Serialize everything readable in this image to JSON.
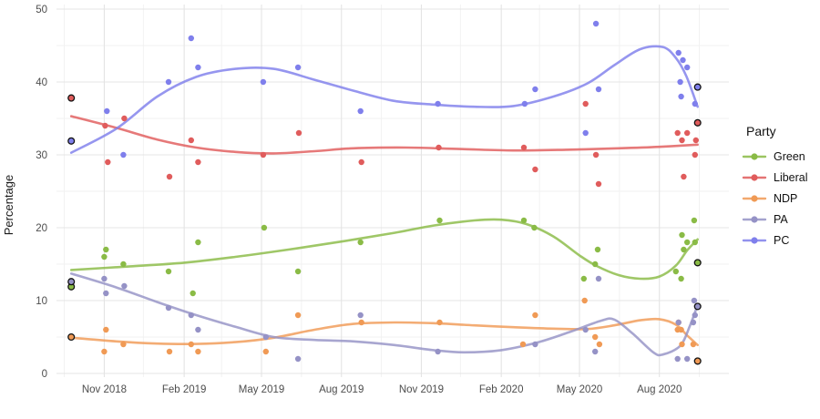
{
  "colors": {
    "background": "#ffffff",
    "grid_major": "#e4e4e4",
    "grid_minor": "#f1f1f1",
    "tick_text": "#4d4d4d",
    "text": "#1a1a1a",
    "election_outline": "#111111"
  },
  "chart_data": {
    "type": "scatter",
    "smoother": "loess",
    "title": "",
    "ylabel": "Percentage",
    "legend_title": "Party",
    "legend_position": "right",
    "grid": true,
    "ylim": [
      0,
      50
    ],
    "xlim": [
      "2018-09-07",
      "2020-10-20"
    ],
    "y_major_ticks": [
      0,
      10,
      20,
      30,
      40,
      50
    ],
    "y_minor_ticks": [
      5,
      15,
      25,
      35,
      45
    ],
    "x_major_ticks": [
      {
        "date": "2018-11-01",
        "label": "Nov 2018"
      },
      {
        "date": "2019-02-01",
        "label": "Feb 2019"
      },
      {
        "date": "2019-05-01",
        "label": "May 2019"
      },
      {
        "date": "2019-08-01",
        "label": "Aug 2019"
      },
      {
        "date": "2019-11-01",
        "label": "Nov 2019"
      },
      {
        "date": "2020-02-01",
        "label": "Feb 2020"
      },
      {
        "date": "2020-05-01",
        "label": "May 2020"
      },
      {
        "date": "2020-08-01",
        "label": "Aug 2020"
      }
    ],
    "x_minor_ticks": [
      "2018-09-16",
      "2018-12-16",
      "2019-03-16",
      "2019-06-16",
      "2019-09-16",
      "2019-12-16",
      "2020-03-16",
      "2020-06-16",
      "2020-09-16"
    ],
    "series": [
      {
        "name": "Green",
        "color": "#8abb46",
        "polls": [
          [
            "2018-11-01",
            16
          ],
          [
            "2018-11-03",
            17
          ],
          [
            "2018-11-23",
            15
          ],
          [
            "2019-01-14",
            14
          ],
          [
            "2019-02-11",
            11
          ],
          [
            "2019-02-17",
            18
          ],
          [
            "2019-05-04",
            20
          ],
          [
            "2019-06-12",
            14
          ],
          [
            "2019-08-23",
            18
          ],
          [
            "2019-11-22",
            21
          ],
          [
            "2020-02-27",
            21
          ],
          [
            "2020-03-10",
            20
          ],
          [
            "2020-05-06",
            13
          ],
          [
            "2020-05-19",
            15
          ],
          [
            "2020-05-22",
            17
          ],
          [
            "2020-08-20",
            14
          ],
          [
            "2020-08-26",
            13
          ],
          [
            "2020-08-27",
            19
          ],
          [
            "2020-08-29",
            17
          ],
          [
            "2020-09-02",
            18
          ],
          [
            "2020-09-10",
            21
          ],
          [
            "2020-09-11",
            18
          ]
        ],
        "elections": [
          [
            "2018-09-24",
            11.9
          ],
          [
            "2020-09-14",
            15.2
          ]
        ],
        "trend": [
          [
            "2018-09-24",
            14.2
          ],
          [
            "2018-12-01",
            14.7
          ],
          [
            "2019-02-01",
            15.2
          ],
          [
            "2019-04-01",
            16.0
          ],
          [
            "2019-06-01",
            17.0
          ],
          [
            "2019-08-01",
            18.1
          ],
          [
            "2019-10-01",
            19.3
          ],
          [
            "2019-11-15",
            20.3
          ],
          [
            "2020-01-01",
            21.0
          ],
          [
            "2020-02-01",
            21.1
          ],
          [
            "2020-03-01",
            20.5
          ],
          [
            "2020-04-01",
            18.8
          ],
          [
            "2020-05-01",
            16.2
          ],
          [
            "2020-05-20",
            14.8
          ],
          [
            "2020-06-15",
            13.5
          ],
          [
            "2020-07-10",
            13.0
          ],
          [
            "2020-08-01",
            13.3
          ],
          [
            "2020-08-20",
            14.8
          ],
          [
            "2020-09-02",
            16.9
          ],
          [
            "2020-09-14",
            18.4
          ]
        ]
      },
      {
        "name": "Liberal",
        "color": "#e05c5c",
        "polls": [
          [
            "2018-11-02",
            34
          ],
          [
            "2018-11-05",
            29
          ],
          [
            "2018-11-24",
            35
          ],
          [
            "2019-01-15",
            27
          ],
          [
            "2019-02-09",
            32
          ],
          [
            "2019-02-17",
            29
          ],
          [
            "2019-05-03",
            30
          ],
          [
            "2019-06-13",
            33
          ],
          [
            "2019-08-24",
            29
          ],
          [
            "2019-11-21",
            31
          ],
          [
            "2020-02-27",
            31
          ],
          [
            "2020-03-11",
            28
          ],
          [
            "2020-05-08",
            37
          ],
          [
            "2020-05-20",
            30
          ],
          [
            "2020-05-23",
            26
          ],
          [
            "2020-08-22",
            33
          ],
          [
            "2020-08-27",
            32
          ],
          [
            "2020-08-29",
            27
          ],
          [
            "2020-09-02",
            33
          ],
          [
            "2020-09-11",
            30
          ],
          [
            "2020-09-12",
            32
          ]
        ],
        "elections": [
          [
            "2018-09-24",
            37.8
          ],
          [
            "2020-09-14",
            34.4
          ]
        ],
        "trend": [
          [
            "2018-09-24",
            35.3
          ],
          [
            "2018-11-15",
            33.7
          ],
          [
            "2019-01-01",
            32.1
          ],
          [
            "2019-02-15",
            31.0
          ],
          [
            "2019-04-01",
            30.4
          ],
          [
            "2019-05-15",
            30.2
          ],
          [
            "2019-07-01",
            30.5
          ],
          [
            "2019-08-15",
            30.9
          ],
          [
            "2019-10-15",
            31.0
          ],
          [
            "2019-12-15",
            30.8
          ],
          [
            "2020-02-15",
            30.6
          ],
          [
            "2020-04-15",
            30.7
          ],
          [
            "2020-06-15",
            30.9
          ],
          [
            "2020-08-01",
            31.1
          ],
          [
            "2020-09-14",
            31.4
          ]
        ]
      },
      {
        "name": "NDP",
        "color": "#f09a55",
        "polls": [
          [
            "2018-11-01",
            3
          ],
          [
            "2018-11-03",
            6
          ],
          [
            "2018-11-23",
            4
          ],
          [
            "2019-01-15",
            3
          ],
          [
            "2019-02-09",
            4
          ],
          [
            "2019-02-17",
            3
          ],
          [
            "2019-05-06",
            3
          ],
          [
            "2019-06-12",
            8
          ],
          [
            "2019-08-24",
            7
          ],
          [
            "2019-11-22",
            7
          ],
          [
            "2020-02-26",
            4
          ],
          [
            "2020-03-11",
            8
          ],
          [
            "2020-05-07",
            10
          ],
          [
            "2020-05-19",
            5
          ],
          [
            "2020-05-24",
            4
          ],
          [
            "2020-08-22",
            6
          ],
          [
            "2020-08-23",
            7
          ],
          [
            "2020-08-26",
            6
          ],
          [
            "2020-08-27",
            4
          ],
          [
            "2020-09-09",
            4
          ]
        ],
        "elections": [
          [
            "2018-09-24",
            5.0
          ],
          [
            "2020-09-14",
            1.7
          ]
        ],
        "trend": [
          [
            "2018-09-24",
            4.9
          ],
          [
            "2018-11-15",
            4.4
          ],
          [
            "2019-01-01",
            4.1
          ],
          [
            "2019-02-15",
            4.05
          ],
          [
            "2019-04-01",
            4.3
          ],
          [
            "2019-05-15",
            4.9
          ],
          [
            "2019-07-01",
            6.0
          ],
          [
            "2019-08-15",
            6.8
          ],
          [
            "2019-10-01",
            7.0
          ],
          [
            "2019-11-15",
            6.9
          ],
          [
            "2020-01-01",
            6.6
          ],
          [
            "2020-02-15",
            6.35
          ],
          [
            "2020-04-01",
            6.15
          ],
          [
            "2020-05-10",
            6.1
          ],
          [
            "2020-06-10",
            6.6
          ],
          [
            "2020-07-10",
            7.3
          ],
          [
            "2020-08-01",
            7.45
          ],
          [
            "2020-08-20",
            6.7
          ],
          [
            "2020-09-03",
            5.1
          ],
          [
            "2020-09-14",
            3.9
          ]
        ]
      },
      {
        "name": "PA",
        "color": "#9592c6",
        "polls": [
          [
            "2018-11-01",
            13
          ],
          [
            "2018-11-03",
            11
          ],
          [
            "2018-11-24",
            12
          ],
          [
            "2019-01-14",
            9
          ],
          [
            "2019-02-09",
            8
          ],
          [
            "2019-02-17",
            6
          ],
          [
            "2019-05-06",
            5
          ],
          [
            "2019-06-12",
            2
          ],
          [
            "2019-08-23",
            8
          ],
          [
            "2019-11-20",
            3
          ],
          [
            "2020-03-11",
            4
          ],
          [
            "2020-05-08",
            6
          ],
          [
            "2020-05-19",
            3
          ],
          [
            "2020-05-23",
            13
          ],
          [
            "2020-08-22",
            2
          ],
          [
            "2020-08-23",
            7
          ],
          [
            "2020-09-02",
            2
          ],
          [
            "2020-09-09",
            7
          ],
          [
            "2020-09-10",
            10
          ],
          [
            "2020-09-11",
            8
          ]
        ],
        "elections": [
          [
            "2018-09-24",
            12.6
          ],
          [
            "2020-09-14",
            9.2
          ]
        ],
        "trend": [
          [
            "2018-09-24",
            13.7
          ],
          [
            "2018-11-15",
            11.8
          ],
          [
            "2019-01-01",
            9.8
          ],
          [
            "2019-02-15",
            8.0
          ],
          [
            "2019-04-01",
            6.4
          ],
          [
            "2019-05-15",
            5.0
          ],
          [
            "2019-07-01",
            4.6
          ],
          [
            "2019-08-15",
            4.4
          ],
          [
            "2019-10-01",
            3.9
          ],
          [
            "2019-11-15",
            3.2
          ],
          [
            "2019-12-20",
            2.9
          ],
          [
            "2020-02-01",
            3.2
          ],
          [
            "2020-03-15",
            4.3
          ],
          [
            "2020-04-20",
            5.7
          ],
          [
            "2020-05-25",
            7.2
          ],
          [
            "2020-06-10",
            7.4
          ],
          [
            "2020-07-01",
            5.5
          ],
          [
            "2020-07-25",
            2.9
          ],
          [
            "2020-08-05",
            2.6
          ],
          [
            "2020-08-25",
            3.8
          ],
          [
            "2020-09-05",
            6.5
          ],
          [
            "2020-09-14",
            9.4
          ]
        ]
      },
      {
        "name": "PC",
        "color": "#7f7fec",
        "polls": [
          [
            "2018-11-04",
            36
          ],
          [
            "2018-11-23",
            30
          ],
          [
            "2019-01-14",
            40
          ],
          [
            "2019-02-09",
            46
          ],
          [
            "2019-02-17",
            42
          ],
          [
            "2019-05-03",
            40
          ],
          [
            "2019-06-12",
            42
          ],
          [
            "2019-08-23",
            36
          ],
          [
            "2019-11-20",
            37
          ],
          [
            "2020-02-28",
            37
          ],
          [
            "2020-03-11",
            39
          ],
          [
            "2020-05-08",
            33
          ],
          [
            "2020-05-20",
            48
          ],
          [
            "2020-05-23",
            39
          ],
          [
            "2020-08-23",
            44
          ],
          [
            "2020-08-25",
            40
          ],
          [
            "2020-08-26",
            38
          ],
          [
            "2020-08-28",
            43
          ],
          [
            "2020-09-02",
            42
          ],
          [
            "2020-09-11",
            37
          ]
        ],
        "elections": [
          [
            "2018-09-24",
            31.9
          ],
          [
            "2020-09-14",
            39.3
          ]
        ],
        "trend": [
          [
            "2018-09-24",
            30.3
          ],
          [
            "2018-11-15",
            33.6
          ],
          [
            "2019-01-01",
            38.0
          ],
          [
            "2019-02-15",
            40.7
          ],
          [
            "2019-04-01",
            41.8
          ],
          [
            "2019-05-15",
            41.8
          ],
          [
            "2019-07-01",
            40.3
          ],
          [
            "2019-08-15",
            38.8
          ],
          [
            "2019-10-01",
            37.4
          ],
          [
            "2019-11-15",
            36.9
          ],
          [
            "2020-01-01",
            36.6
          ],
          [
            "2020-02-15",
            36.7
          ],
          [
            "2020-04-01",
            38.0
          ],
          [
            "2020-05-10",
            39.8
          ],
          [
            "2020-06-10",
            42.3
          ],
          [
            "2020-07-10",
            44.5
          ],
          [
            "2020-08-05",
            44.8
          ],
          [
            "2020-08-20",
            43.3
          ],
          [
            "2020-09-01",
            40.8
          ],
          [
            "2020-09-14",
            36.6
          ]
        ]
      }
    ]
  }
}
